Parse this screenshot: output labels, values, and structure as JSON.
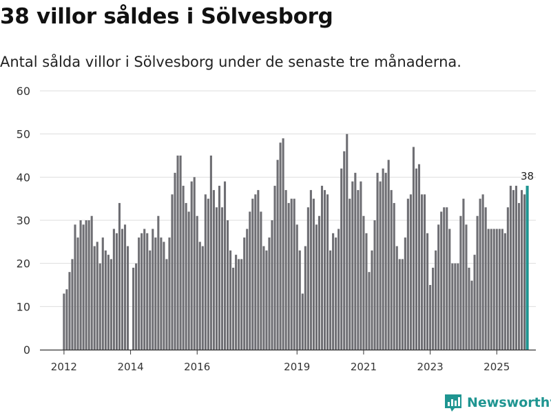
{
  "header": {
    "title": "38 villor såldes i Sölvesborg",
    "subtitle": "Antal sålda villor i Sölvesborg under de senaste tre månaderna."
  },
  "brand": {
    "name": "Newsworthy"
  },
  "colors": {
    "bar": "#6e6e73",
    "highlight": "#1f9591",
    "grid": "#dddddd",
    "axis": "#333333",
    "text": "#333333"
  },
  "chart_data": {
    "type": "bar",
    "title": "Antal sålda villor i Sölvesborg under de senaste tre månaderna.",
    "xlabel": "",
    "ylabel": "",
    "ylim": [
      0,
      60
    ],
    "yticks": [
      0,
      10,
      20,
      30,
      40,
      50,
      60
    ],
    "grid": true,
    "start_month": "2012-01",
    "xticks": [
      {
        "label": "2012",
        "month_index": 0
      },
      {
        "label": "2014",
        "month_index": 24
      },
      {
        "label": "2016",
        "month_index": 48
      },
      {
        "label": "2019",
        "month_index": 84
      },
      {
        "label": "2021",
        "month_index": 108
      },
      {
        "label": "2023",
        "month_index": 132
      },
      {
        "label": "2025",
        "month_index": 156
      }
    ],
    "values": [
      13,
      14,
      18,
      21,
      29,
      26,
      30,
      29,
      30,
      30,
      31,
      24,
      25,
      20,
      26,
      23,
      22,
      21,
      28,
      27,
      34,
      28,
      29,
      24,
      0,
      19,
      20,
      26,
      27,
      28,
      27,
      23,
      28,
      26,
      31,
      26,
      25,
      21,
      26,
      36,
      41,
      45,
      45,
      38,
      34,
      32,
      39,
      40,
      31,
      25,
      24,
      36,
      35,
      45,
      37,
      33,
      38,
      33,
      39,
      30,
      23,
      19,
      22,
      21,
      21,
      26,
      28,
      32,
      35,
      36,
      37,
      32,
      24,
      23,
      26,
      30,
      38,
      44,
      48,
      49,
      37,
      34,
      35,
      35,
      29,
      23,
      13,
      24,
      33,
      37,
      35,
      29,
      31,
      38,
      37,
      36,
      23,
      27,
      26,
      28,
      42,
      46,
      50,
      35,
      39,
      41,
      37,
      39,
      31,
      27,
      18,
      23,
      30,
      41,
      39,
      42,
      41,
      44,
      37,
      34,
      24,
      21,
      21,
      26,
      35,
      36,
      47,
      42,
      43,
      36,
      36,
      27,
      15,
      19,
      23,
      29,
      32,
      33,
      33,
      28,
      20,
      20,
      20,
      31,
      35,
      29,
      19,
      16,
      22,
      31,
      35,
      36,
      33,
      28,
      28,
      28,
      28,
      28,
      28,
      27,
      33,
      38,
      37,
      38,
      34,
      37,
      36,
      38
    ],
    "highlight_last": true,
    "last_label": "38"
  }
}
